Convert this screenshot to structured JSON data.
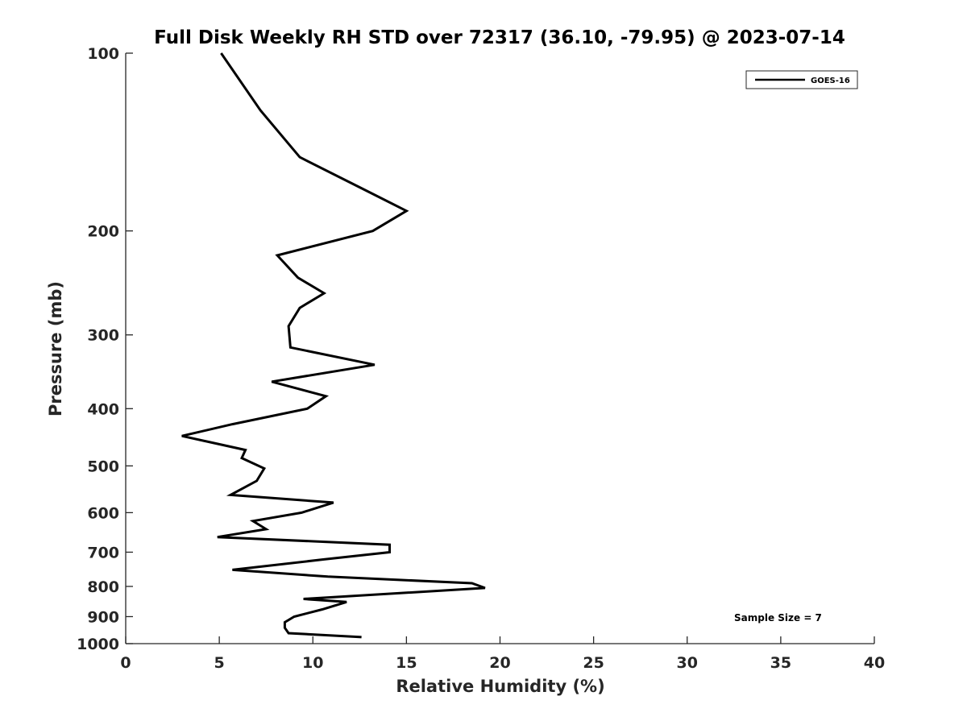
{
  "chart_data": {
    "type": "line",
    "title": "Full Disk Weekly RH STD over 72317 (36.10, -79.95) @ 2023-07-14",
    "xlabel": "Relative Humidity (%)",
    "ylabel": "Pressure (mb)",
    "xlim": [
      0,
      40
    ],
    "ylim": [
      100,
      1000
    ],
    "yscale": "log",
    "y_reversed": true,
    "xticks": [
      0,
      5,
      10,
      15,
      20,
      25,
      30,
      35,
      40
    ],
    "yticks": [
      100,
      200,
      300,
      400,
      500,
      600,
      700,
      800,
      900,
      1000
    ],
    "grid": false,
    "legend_position": "top-right",
    "series": [
      {
        "name": "GOES-16",
        "color": "#000000",
        "points": [
          [
            5.1,
            100
          ],
          [
            7.2,
            125
          ],
          [
            9.3,
            150
          ],
          [
            12.7,
            170
          ],
          [
            15.0,
            185
          ],
          [
            13.2,
            200
          ],
          [
            8.1,
            220
          ],
          [
            9.2,
            240
          ],
          [
            10.6,
            255
          ],
          [
            9.3,
            270
          ],
          [
            8.7,
            290
          ],
          [
            8.8,
            315
          ],
          [
            13.3,
            337
          ],
          [
            7.8,
            360
          ],
          [
            10.7,
            381
          ],
          [
            9.7,
            400
          ],
          [
            5.7,
            425
          ],
          [
            3.0,
            445
          ],
          [
            6.4,
            470
          ],
          [
            6.2,
            485
          ],
          [
            7.4,
            505
          ],
          [
            7.0,
            530
          ],
          [
            5.6,
            560
          ],
          [
            11.1,
            577
          ],
          [
            9.4,
            600
          ],
          [
            6.8,
            620
          ],
          [
            7.5,
            640
          ],
          [
            4.9,
            660
          ],
          [
            14.1,
            680
          ],
          [
            14.1,
            700
          ],
          [
            10.6,
            720
          ],
          [
            5.7,
            750
          ],
          [
            10.8,
            770
          ],
          [
            18.5,
            790
          ],
          [
            19.2,
            805
          ],
          [
            9.5,
            840
          ],
          [
            11.8,
            850
          ],
          [
            10.5,
            875
          ],
          [
            9.0,
            900
          ],
          [
            8.5,
            920
          ],
          [
            8.5,
            940
          ],
          [
            8.7,
            960
          ],
          [
            12.6,
            975
          ]
        ]
      }
    ],
    "annotations": [
      "Sample Size = 7"
    ]
  }
}
